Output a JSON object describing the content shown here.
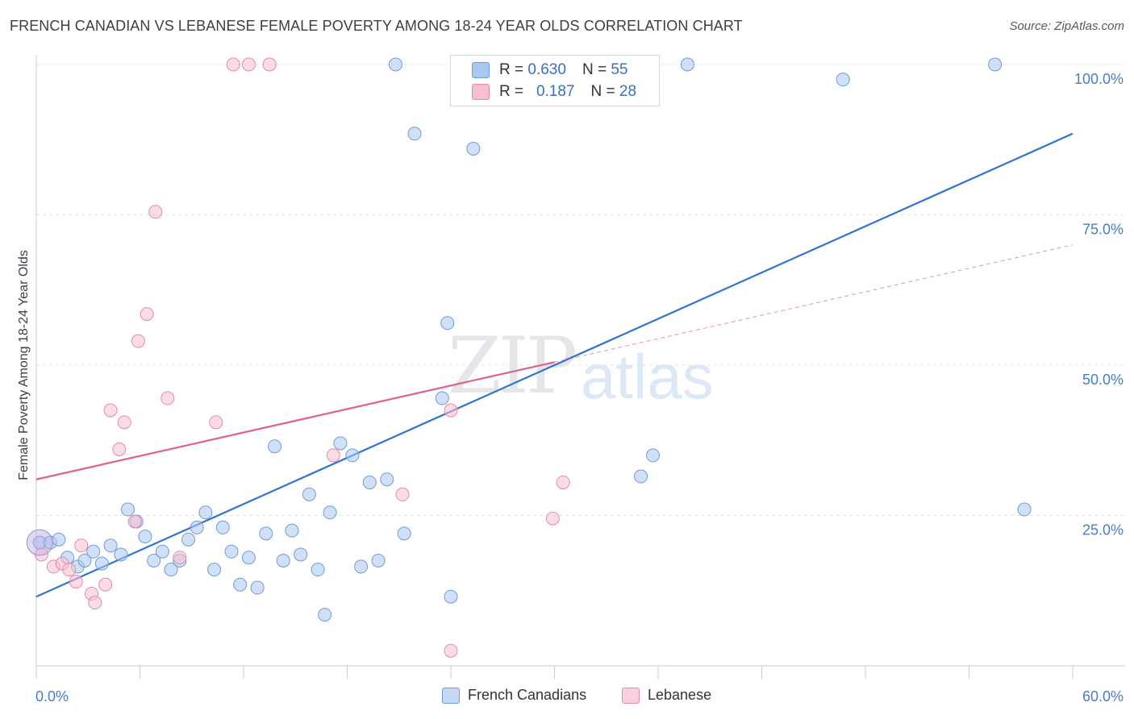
{
  "title": "FRENCH CANADIAN VS LEBANESE FEMALE POVERTY AMONG 18-24 YEAR OLDS CORRELATION CHART",
  "source": "Source: ZipAtlas.com",
  "watermark": {
    "zip": "ZIP",
    "atlas": "atlas"
  },
  "legend": {
    "rows": [
      {
        "r_label": "R = ",
        "r_value": "0.630",
        "n_label": "N = ",
        "n_value": "55",
        "color": "#a9c8f0",
        "border": "#6f9bd8"
      },
      {
        "r_label": "R = ",
        "r_value": "0.187",
        "n_label": "N = ",
        "n_value": "28",
        "color": "#f7bfd0",
        "border": "#e58aa8"
      }
    ]
  },
  "bottom_legend": [
    {
      "label": "French Canadians",
      "color": "#c5d9f4",
      "border": "#6f9bd8"
    },
    {
      "label": "Lebanese",
      "color": "#f9d0dd",
      "border": "#e58aa8"
    }
  ],
  "chart_data": {
    "type": "scatter",
    "ylabel": "Female Poverty Among 18-24 Year Olds",
    "xlim": [
      0,
      60
    ],
    "ylim": [
      0,
      100
    ],
    "x_tick_labels": [
      "0.0%",
      "60.0%"
    ],
    "y_tick_labels": [
      "25.0%",
      "50.0%",
      "75.0%",
      "100.0%"
    ],
    "y_ticks": [
      25,
      50,
      75,
      100
    ],
    "grid": true,
    "series": [
      {
        "name": "French Canadians",
        "color": "#a9c8f0",
        "stroke": "#6f9bd8",
        "trend": {
          "x": [
            0,
            60
          ],
          "y": [
            11.5,
            88.5
          ],
          "color": "#2f74d0"
        },
        "points": [
          [
            0.2,
            20.5
          ],
          [
            0.8,
            20.5
          ],
          [
            1.3,
            21.0
          ],
          [
            1.8,
            18.0
          ],
          [
            2.4,
            16.5
          ],
          [
            2.8,
            17.5
          ],
          [
            3.3,
            19.0
          ],
          [
            3.8,
            17.0
          ],
          [
            4.3,
            20.0
          ],
          [
            4.9,
            18.5
          ],
          [
            5.3,
            26.0
          ],
          [
            5.8,
            24.0
          ],
          [
            6.3,
            21.5
          ],
          [
            6.8,
            17.5
          ],
          [
            7.3,
            19.0
          ],
          [
            7.8,
            16.0
          ],
          [
            8.3,
            17.5
          ],
          [
            8.8,
            21.0
          ],
          [
            9.3,
            23.0
          ],
          [
            9.8,
            25.5
          ],
          [
            10.3,
            16.0
          ],
          [
            10.8,
            23.0
          ],
          [
            11.3,
            19.0
          ],
          [
            11.8,
            13.5
          ],
          [
            12.3,
            18.0
          ],
          [
            12.8,
            13.0
          ],
          [
            13.3,
            22.0
          ],
          [
            13.8,
            36.5
          ],
          [
            14.3,
            17.5
          ],
          [
            14.8,
            22.5
          ],
          [
            15.3,
            18.5
          ],
          [
            15.8,
            28.5
          ],
          [
            16.3,
            16.0
          ],
          [
            16.7,
            8.5
          ],
          [
            17.0,
            25.5
          ],
          [
            17.6,
            37.0
          ],
          [
            18.3,
            35.0
          ],
          [
            18.8,
            16.5
          ],
          [
            19.3,
            30.5
          ],
          [
            19.8,
            17.5
          ],
          [
            20.3,
            31.0
          ],
          [
            20.8,
            100.0
          ],
          [
            21.3,
            22.0
          ],
          [
            21.9,
            88.5
          ],
          [
            23.5,
            44.5
          ],
          [
            23.8,
            57.0
          ],
          [
            24.0,
            11.5
          ],
          [
            25.3,
            86.0
          ],
          [
            32.0,
            100.0
          ],
          [
            35.0,
            31.5
          ],
          [
            35.7,
            35.0
          ],
          [
            37.7,
            100.0
          ],
          [
            46.7,
            97.5
          ],
          [
            55.5,
            100.0
          ],
          [
            57.2,
            26.0
          ]
        ]
      },
      {
        "name": "Lebanese",
        "color": "#f7bfd0",
        "stroke": "#e58aa8",
        "trend": {
          "x": [
            0,
            30
          ],
          "y": [
            31.0,
            50.5
          ],
          "dashed_to": {
            "x": 60,
            "y": 70.0
          },
          "color": "#e0628a"
        },
        "points": [
          [
            0.3,
            18.5
          ],
          [
            1.0,
            16.5
          ],
          [
            1.5,
            17.0
          ],
          [
            1.9,
            16.0
          ],
          [
            2.3,
            14.0
          ],
          [
            2.6,
            20.0
          ],
          [
            3.2,
            12.0
          ],
          [
            3.4,
            10.5
          ],
          [
            4.0,
            13.5
          ],
          [
            4.3,
            42.5
          ],
          [
            4.8,
            36.0
          ],
          [
            5.1,
            40.5
          ],
          [
            5.7,
            24.0
          ],
          [
            5.9,
            54.0
          ],
          [
            6.4,
            58.5
          ],
          [
            6.9,
            75.5
          ],
          [
            7.6,
            44.5
          ],
          [
            8.3,
            18.0
          ],
          [
            10.4,
            40.5
          ],
          [
            11.4,
            100.0
          ],
          [
            12.3,
            100.0
          ],
          [
            13.5,
            100.0
          ],
          [
            17.2,
            35.0
          ],
          [
            21.2,
            28.5
          ],
          [
            24.0,
            42.5
          ],
          [
            24.0,
            2.5
          ],
          [
            29.9,
            24.5
          ],
          [
            30.5,
            30.5
          ]
        ]
      }
    ]
  }
}
